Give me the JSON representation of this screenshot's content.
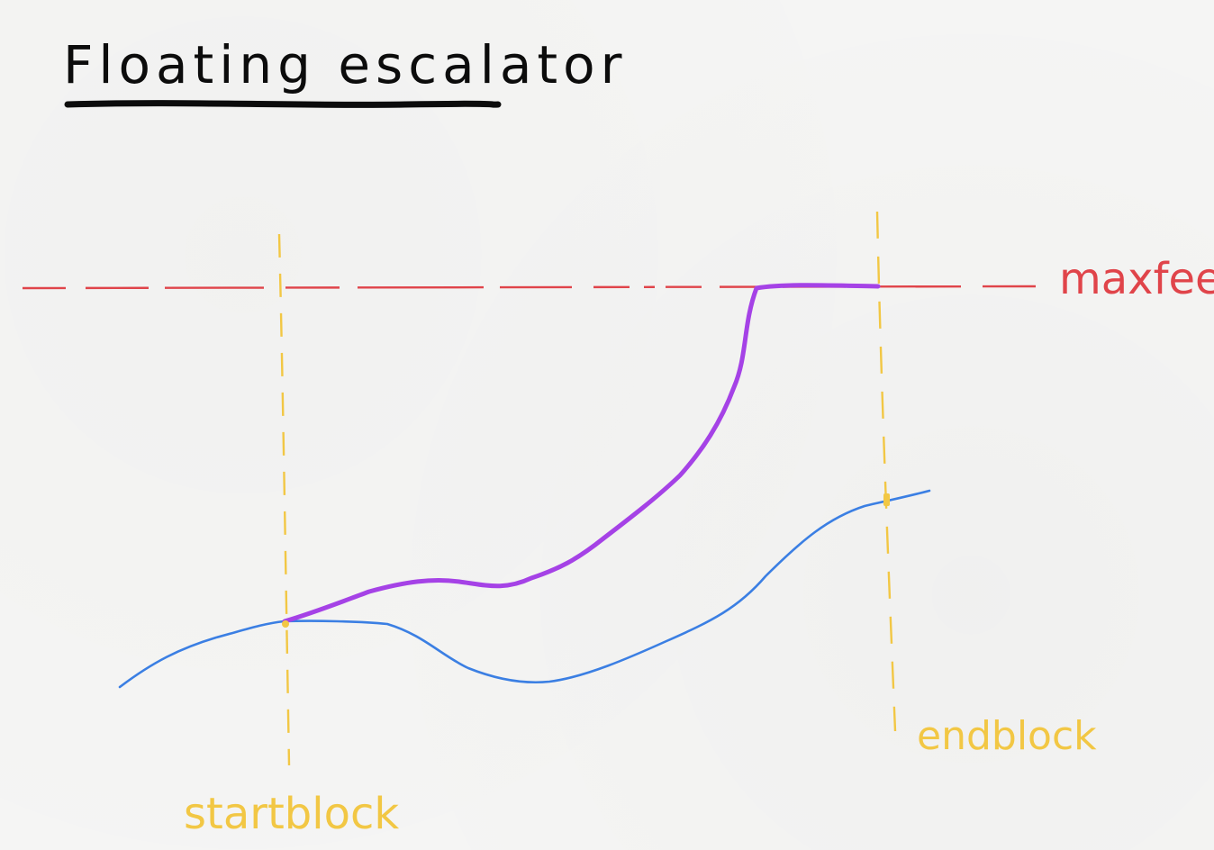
{
  "title": "Floating escalator",
  "labels": {
    "max": "maxfee",
    "start": "startblock",
    "end": "endblock"
  },
  "colors": {
    "ink": "#0c0c0c",
    "max_line": "#e0444a",
    "block_lines": "#f2c744",
    "base_curve": "#3b7fe3",
    "escalator_curve": "#a542e6",
    "paper": "#f5f5f4"
  }
}
